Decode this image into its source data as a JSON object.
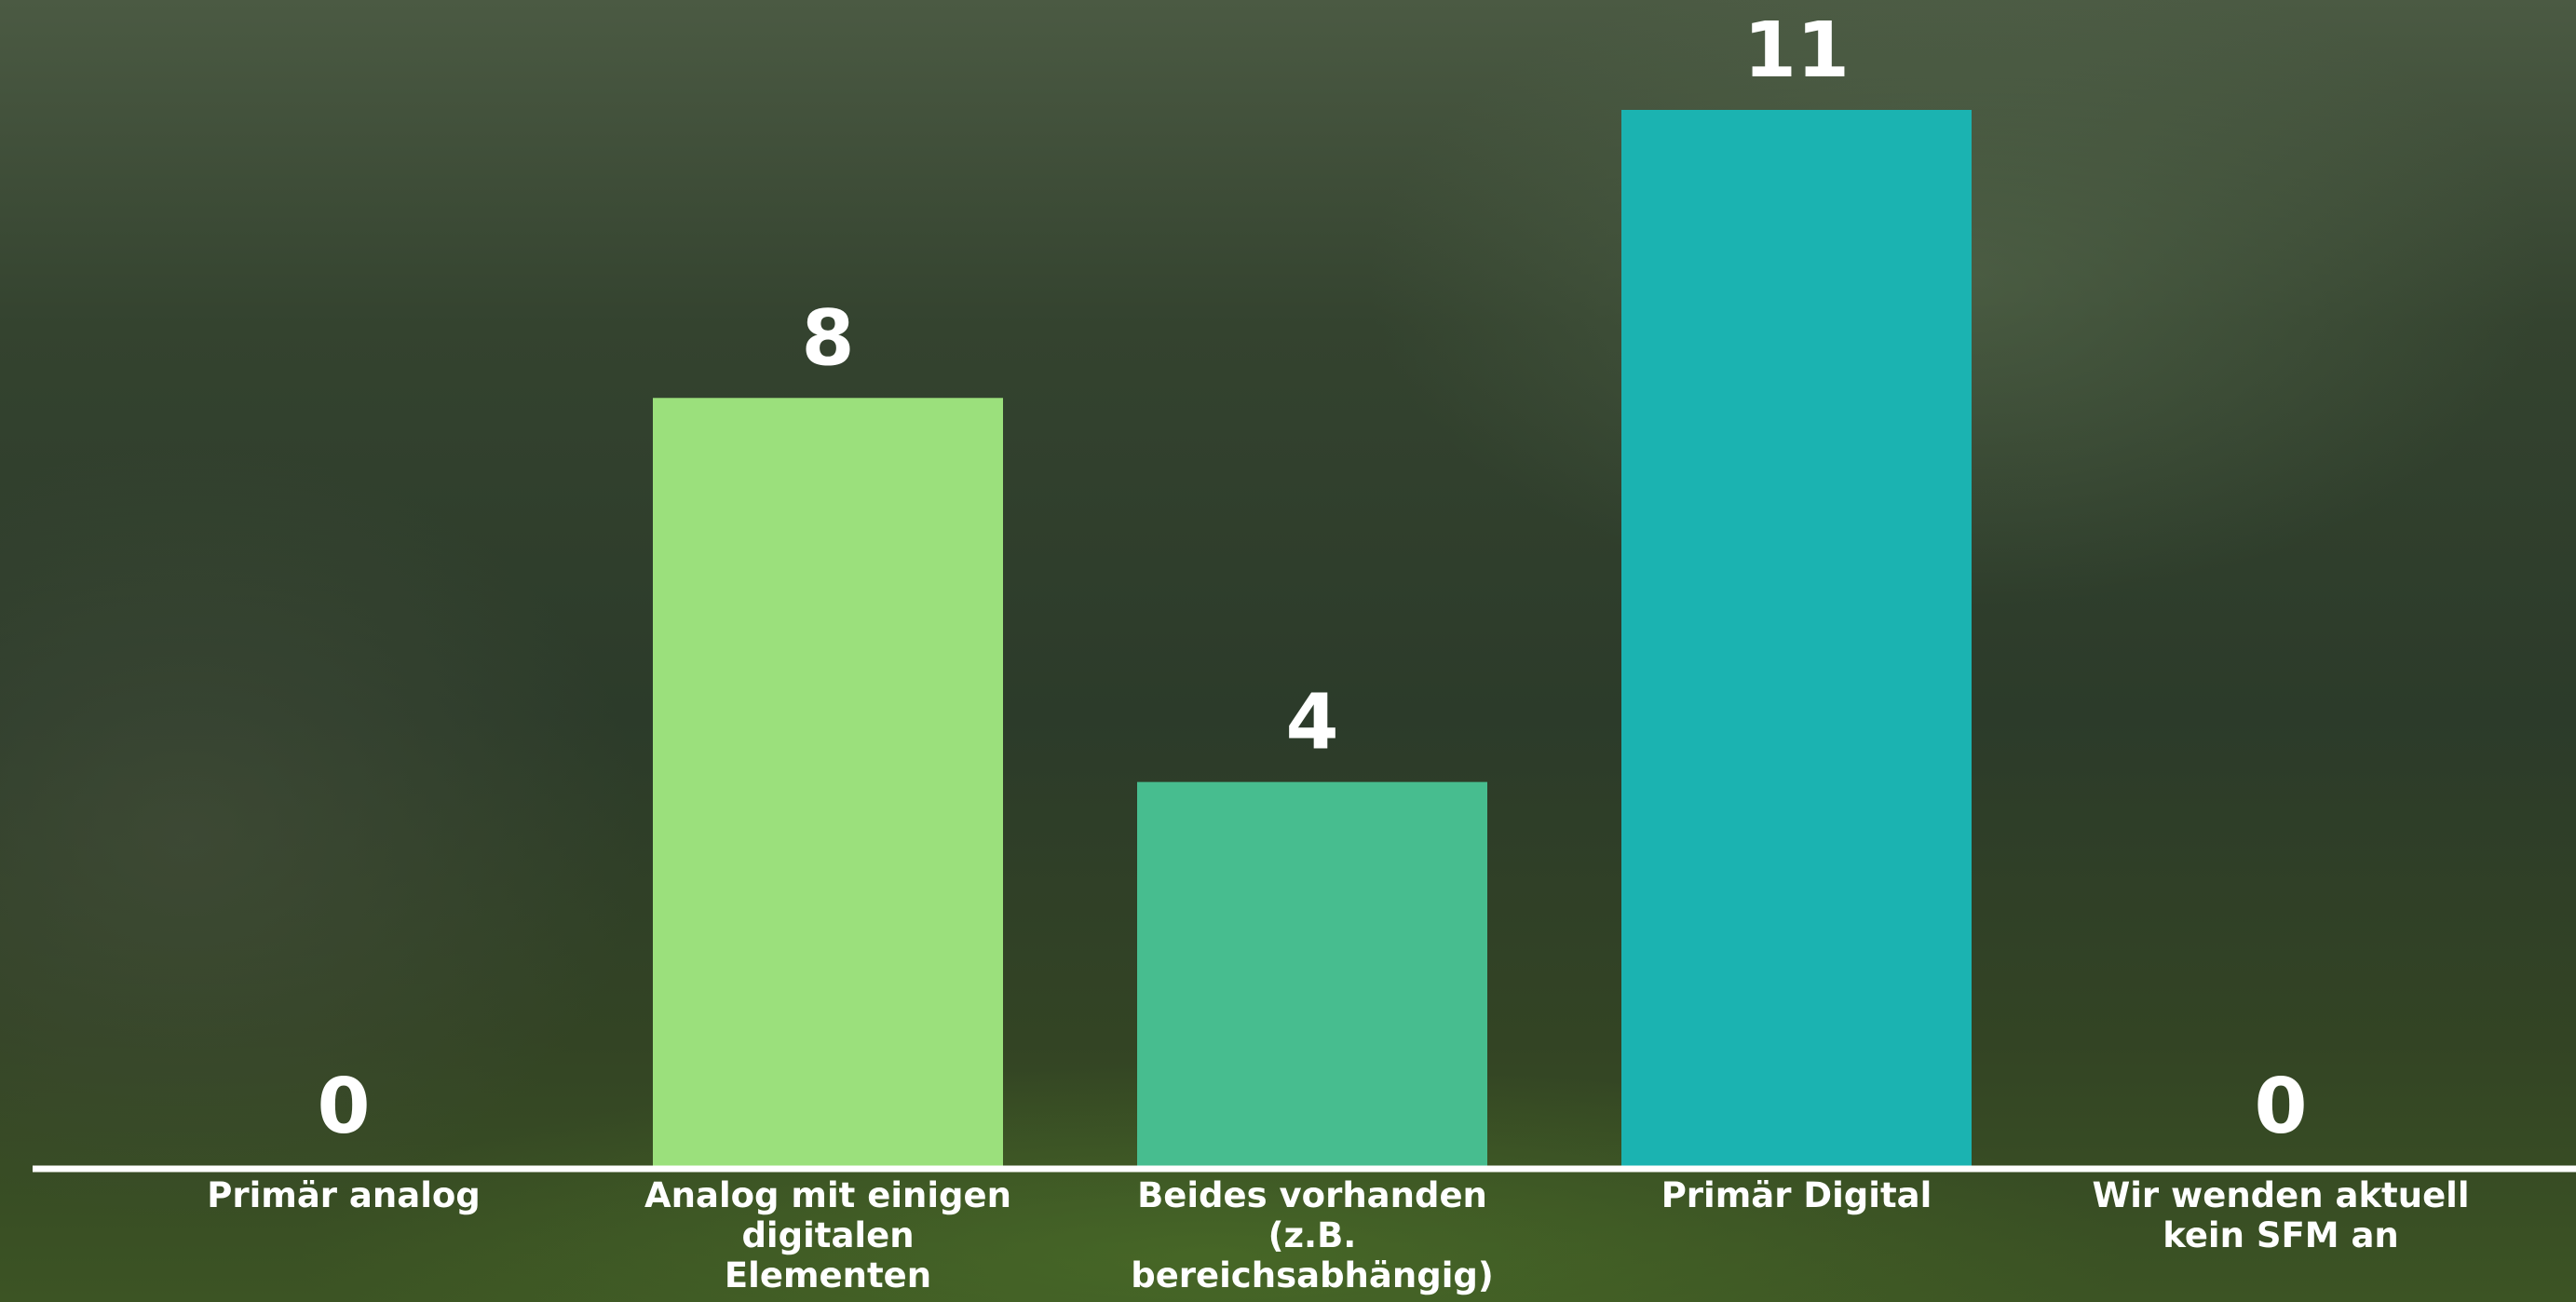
{
  "chart_data": {
    "type": "bar",
    "categories": [
      "Primär analog",
      "Analog mit einigen digitalen Elementen",
      "Beides vorhanden (z.B. bereichsabhängig)",
      "Primär Digital",
      "Wir wenden aktuell kein SFM an"
    ],
    "values": [
      0,
      8,
      4,
      11,
      0
    ],
    "colors": [
      "#b9e46f",
      "#9be07c",
      "#47bd8f",
      "#1bb3b1",
      "#17a3b3"
    ]
  }
}
